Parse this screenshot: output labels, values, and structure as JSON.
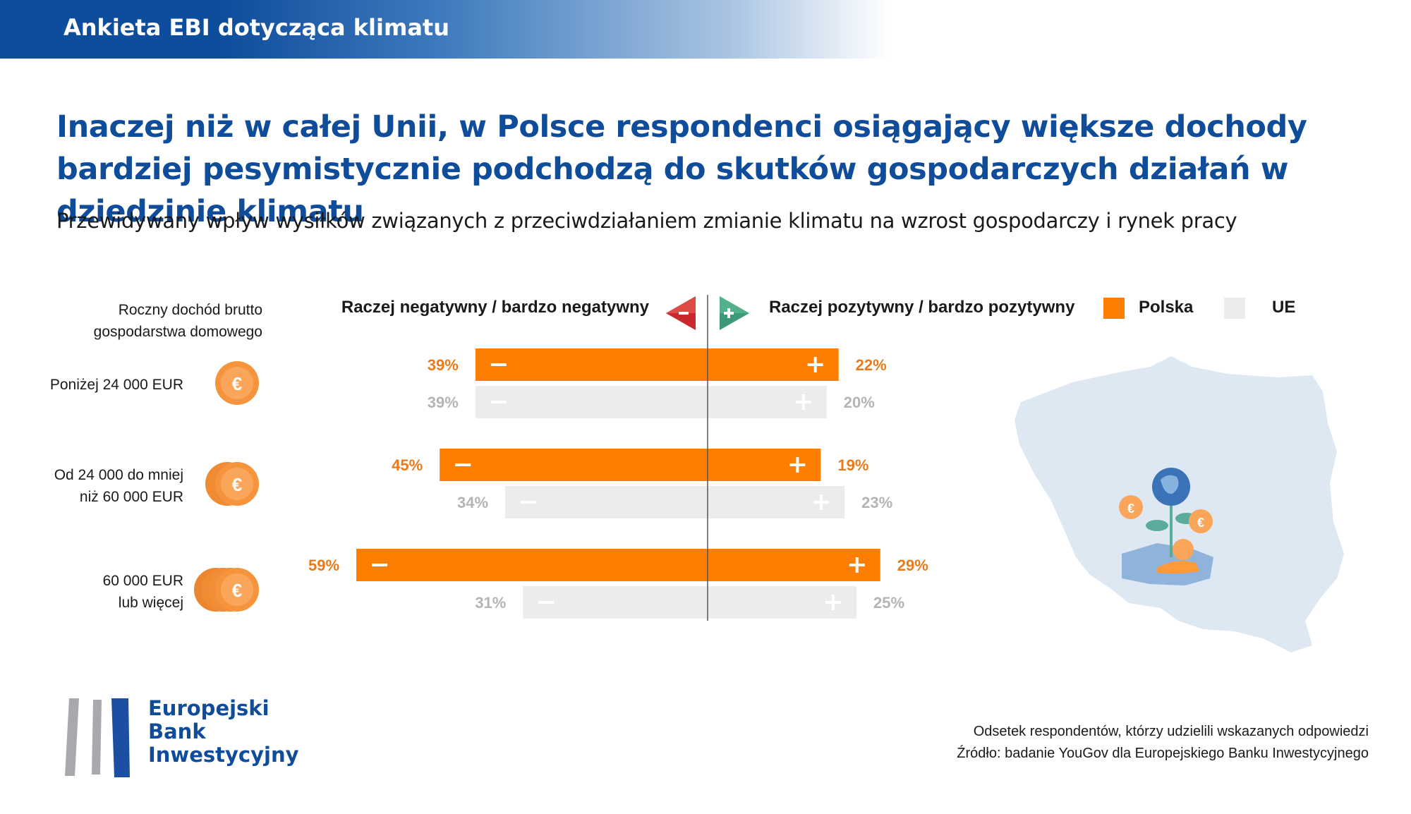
{
  "header": {
    "title": "Ankieta EBI dotycząca klimatu"
  },
  "headline": "Inaczej niż w całej Unii, w Polsce respondenci osiągający większe dochody bardziej pesymistycznie podchodzą do skutków gospodarczych działań w dziedzinie klimatu",
  "subtitle": "Przewidywany wpływ wysiłków związanych z przeciwdziałaniem zmianie klimatu na wzrost gospodarczy i rynek pracy",
  "chart_data": {
    "type": "bar",
    "orientation": "horizontal-diverging",
    "row_header": "Roczny dochód brutto gospodarstwa domowego",
    "negative_header": "Raczej negatywny / bardzo negatywny",
    "positive_header": "Raczej pozytywny / bardzo pozytywny",
    "categories": [
      "Poniżej 24 000 EUR",
      "Od 24 000 do mniej niż 60 000 EUR",
      "60 000 EUR lub więcej"
    ],
    "series": [
      {
        "name": "Polska",
        "color": "#fe7e02",
        "negative": [
          39,
          45,
          59
        ],
        "positive": [
          22,
          19,
          29
        ]
      },
      {
        "name": "UE",
        "color": "#ececec",
        "negative": [
          39,
          34,
          31
        ],
        "positive": [
          20,
          23,
          25
        ]
      }
    ],
    "value_suffix": "%",
    "legend_position": "top-right"
  },
  "categories_display": [
    [
      "Poniżej 24 000 EUR"
    ],
    [
      "Od 24 000 do mniej",
      "niż 60 000 EUR"
    ],
    [
      "60 000 EUR",
      "lub więcej"
    ]
  ],
  "row_header_lines": [
    "Roczny dochód brutto",
    "gospodarstwa domowego"
  ],
  "footer": {
    "note": "Odsetek respondentów, którzy udzielili wskazanych odpowiedzi",
    "source": "Źródło: badanie YouGov dla Europejskiego Banku Inwestycyjnego"
  },
  "logo": {
    "line1": "Europejski",
    "line2": "Bank",
    "line3": "Inwestycyjny"
  },
  "colors": {
    "brand_blue": "#0f4c9a",
    "orange": "#fe7e02",
    "eu_grey": "#ececec",
    "map": "#dde8f3"
  },
  "icons": {
    "coin": "euro-coin-icon",
    "negative_arrow": "minus-arrow-icon",
    "positive_arrow": "plus-arrow-icon",
    "map": "poland-map-icon"
  }
}
